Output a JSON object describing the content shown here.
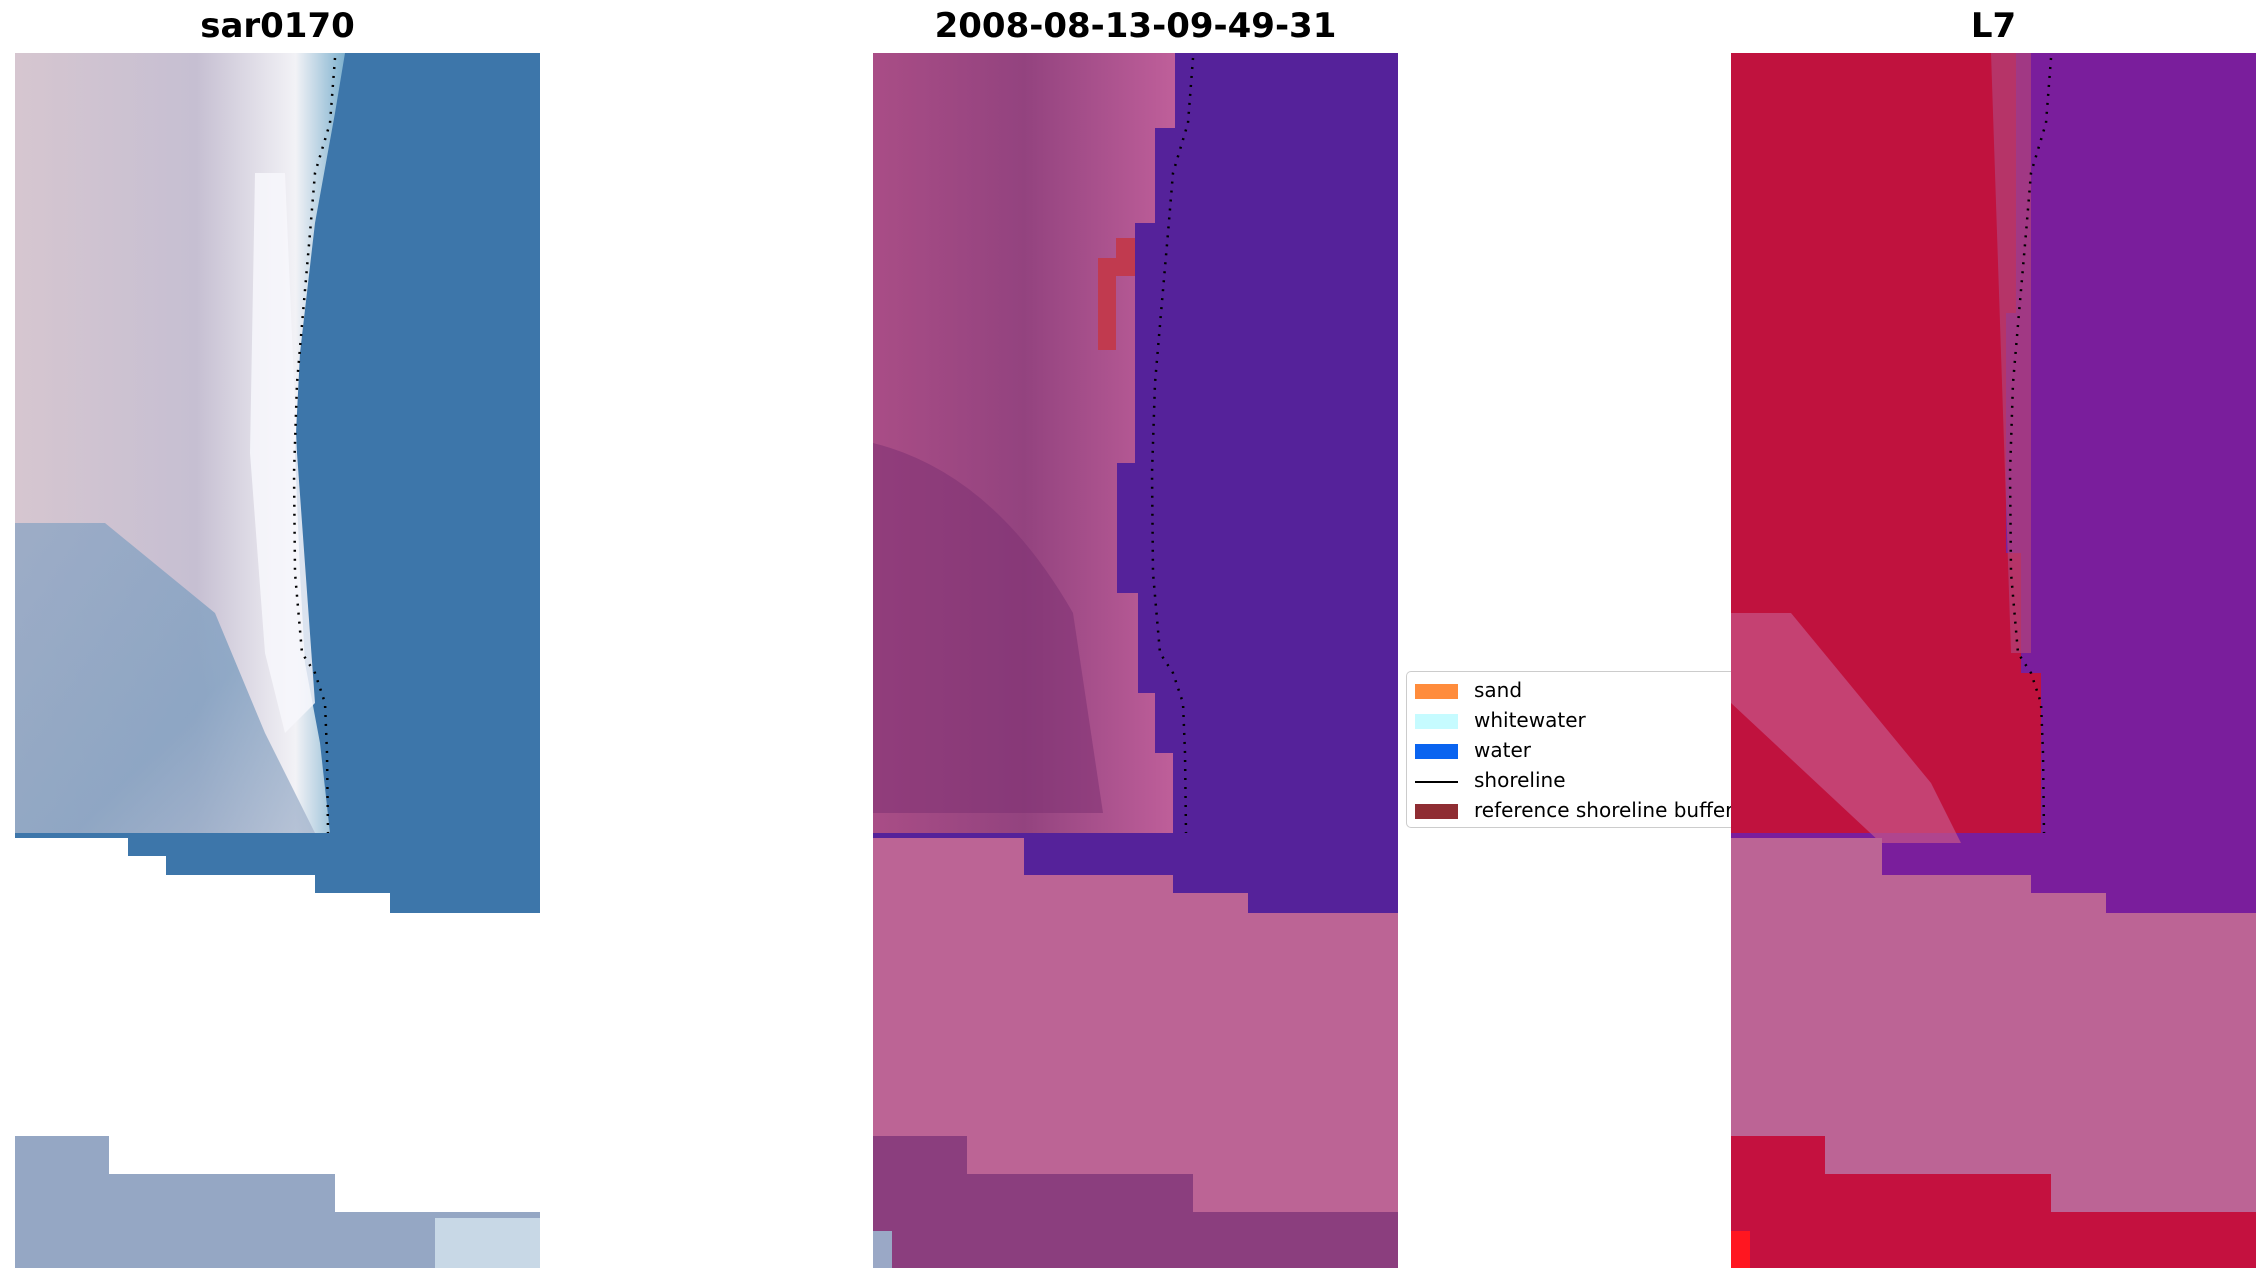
{
  "panels": [
    {
      "title": "sar0170"
    },
    {
      "title": "2008-08-13-09-49-31"
    },
    {
      "title": "L7"
    }
  ],
  "legend": {
    "items": [
      {
        "label": "sand",
        "color": "#ff8c3c"
      },
      {
        "label": "whitewater",
        "color": "#c6fbff"
      },
      {
        "label": "water",
        "color": "#0a64f0"
      },
      {
        "label": "shoreline",
        "color": "#000000",
        "kind": "line"
      },
      {
        "label": "reference shoreline buffer",
        "color": "#8f2d33"
      }
    ]
  },
  "colors": {
    "rgb_water": "#3d76aa",
    "rgb_sand": "#c9bfcf",
    "classified_water": "#55229a",
    "classified_land": "#b55b92",
    "classified_nodata": "#bc6495",
    "ndwi_land": "#c0123e",
    "ndwi_water": "#7a1e9c",
    "ndwi_nodata": "#bc6495"
  }
}
